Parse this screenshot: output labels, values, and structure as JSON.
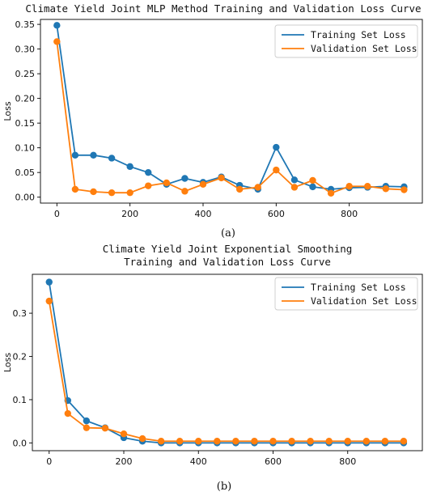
{
  "colors": {
    "training": "#1f77b4",
    "validation": "#ff7f0e"
  },
  "chart_data": [
    {
      "type": "line",
      "title_lines": [
        "Climate Yield Joint MLP Method Training and Validation Loss Curve"
      ],
      "xlabel": "",
      "ylabel": "Loss",
      "caption": "(a)",
      "x": [
        0,
        50,
        100,
        150,
        200,
        250,
        300,
        350,
        400,
        450,
        500,
        550,
        600,
        650,
        700,
        750,
        800,
        850,
        900,
        950
      ],
      "xlim": [
        -45,
        1000
      ],
      "ylim": [
        -0.012,
        0.36
      ],
      "xticks": [
        0,
        200,
        400,
        600,
        800
      ],
      "yticks": [
        0.0,
        0.05,
        0.1,
        0.15,
        0.2,
        0.25,
        0.3,
        0.35
      ],
      "ytick_labels": [
        "0.00",
        "0.05",
        "0.10",
        "0.15",
        "0.20",
        "0.25",
        "0.30",
        "0.35"
      ],
      "grid": false,
      "legend": "top-right",
      "series": [
        {
          "name": "Training Set Loss",
          "values": [
            0.348,
            0.085,
            0.085,
            0.079,
            0.062,
            0.05,
            0.026,
            0.038,
            0.03,
            0.041,
            0.024,
            0.016,
            0.101,
            0.035,
            0.021,
            0.016,
            0.019,
            0.02,
            0.022,
            0.021
          ]
        },
        {
          "name": "Validation Set Loss",
          "values": [
            0.315,
            0.016,
            0.011,
            0.009,
            0.009,
            0.023,
            0.029,
            0.012,
            0.026,
            0.039,
            0.016,
            0.02,
            0.055,
            0.02,
            0.034,
            0.008,
            0.022,
            0.022,
            0.017,
            0.015
          ]
        }
      ]
    },
    {
      "type": "line",
      "title_lines": [
        "Climate Yield Joint Exponential Smoothing",
        "Training and Validation Loss Curve"
      ],
      "xlabel": "",
      "ylabel": "Loss",
      "caption": "(b)",
      "x": [
        0,
        50,
        100,
        150,
        200,
        250,
        300,
        350,
        400,
        450,
        500,
        550,
        600,
        650,
        700,
        750,
        800,
        850,
        900,
        950
      ],
      "xlim": [
        -45,
        1000
      ],
      "ylim": [
        -0.018,
        0.39
      ],
      "xticks": [
        0,
        200,
        400,
        600,
        800
      ],
      "yticks": [
        0.0,
        0.1,
        0.2,
        0.3
      ],
      "ytick_labels": [
        "0.0",
        "0.1",
        "0.2",
        "0.3"
      ],
      "grid": false,
      "legend": "top-right",
      "series": [
        {
          "name": "Training Set Loss",
          "values": [
            0.372,
            0.098,
            0.051,
            0.035,
            0.012,
            0.004,
            0.0,
            0.0,
            0.0,
            0.0,
            0.0,
            0.0,
            0.0,
            0.0,
            0.0,
            0.0,
            0.0,
            0.0,
            0.0,
            0.0
          ]
        },
        {
          "name": "Validation Set Loss",
          "values": [
            0.328,
            0.068,
            0.035,
            0.034,
            0.021,
            0.01,
            0.004,
            0.004,
            0.004,
            0.004,
            0.004,
            0.004,
            0.004,
            0.004,
            0.004,
            0.004,
            0.004,
            0.004,
            0.004,
            0.004
          ]
        }
      ]
    }
  ]
}
